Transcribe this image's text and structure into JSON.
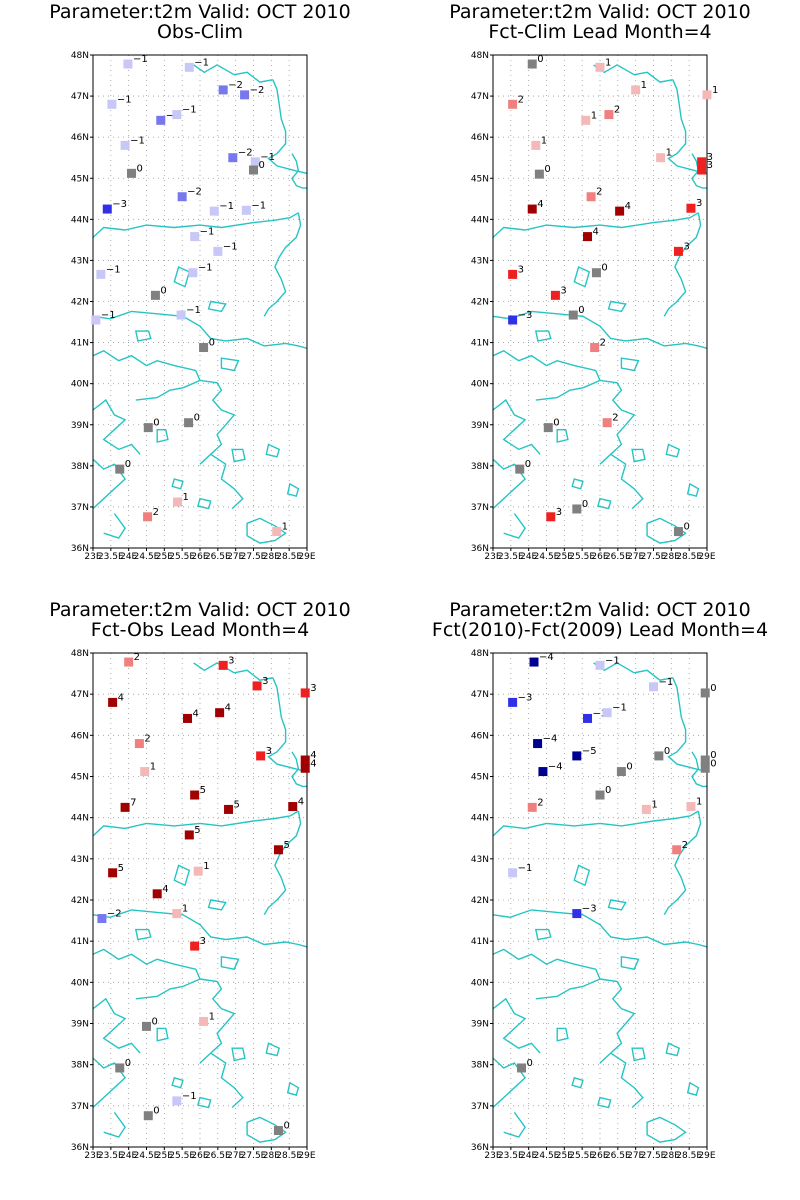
{
  "colors": {
    "coast": "#26c4c4",
    "0": "#808080",
    "1": "#f4b8b8",
    "2": "#f08080",
    "3": "#ee2020",
    "4": "#a00000",
    "5": "#a00000",
    "7": "#a00000",
    "-1": "#c8c8f8",
    "-2": "#7878ee",
    "-3": "#3030e8",
    "-4": "#000090",
    "-5": "#000090"
  },
  "chart_data": [
    {
      "type": "scatter",
      "title": "Parameter:t2m Valid: OCT 2010",
      "subtitle": "Obs-Clim",
      "xlim": [
        23,
        29
      ],
      "ylim": [
        36,
        48
      ],
      "x_ticks": [
        "23E",
        "23.5E",
        "24E",
        "24.5E",
        "25E",
        "25.5E",
        "26E",
        "26.5E",
        "27E",
        "27.5E",
        "28E",
        "28.5E",
        "29E"
      ],
      "y_ticks": [
        "36N",
        "37N",
        "38N",
        "39N",
        "40N",
        "41N",
        "42N",
        "43N",
        "44N",
        "45N",
        "46N",
        "47N",
        "48N"
      ],
      "points": [
        {
          "lon": 23.98,
          "lat": 47.78,
          "value": -1
        },
        {
          "lon": 25.7,
          "lat": 47.7,
          "value": -1
        },
        {
          "lon": 26.65,
          "lat": 47.15,
          "value": -2
        },
        {
          "lon": 27.25,
          "lat": 47.03,
          "value": -2
        },
        {
          "lon": 23.53,
          "lat": 46.8,
          "value": -1
        },
        {
          "lon": 24.9,
          "lat": 46.41,
          "value": -2
        },
        {
          "lon": 25.35,
          "lat": 46.55,
          "value": -1
        },
        {
          "lon": 23.9,
          "lat": 45.8,
          "value": -1
        },
        {
          "lon": 26.92,
          "lat": 45.5,
          "value": -2
        },
        {
          "lon": 27.55,
          "lat": 45.4,
          "value": -1
        },
        {
          "lon": 24.08,
          "lat": 45.12,
          "value": 0
        },
        {
          "lon": 27.5,
          "lat": 45.2,
          "value": 0
        },
        {
          "lon": 23.4,
          "lat": 44.25,
          "value": -3
        },
        {
          "lon": 25.5,
          "lat": 44.55,
          "value": -2
        },
        {
          "lon": 26.4,
          "lat": 44.2,
          "value": -1
        },
        {
          "lon": 27.3,
          "lat": 44.22,
          "value": -1
        },
        {
          "lon": 25.85,
          "lat": 43.58,
          "value": -1
        },
        {
          "lon": 26.5,
          "lat": 43.22,
          "value": -1
        },
        {
          "lon": 23.22,
          "lat": 42.66,
          "value": -1
        },
        {
          "lon": 25.8,
          "lat": 42.7,
          "value": -1
        },
        {
          "lon": 24.75,
          "lat": 42.15,
          "value": 0
        },
        {
          "lon": 25.47,
          "lat": 41.67,
          "value": -1
        },
        {
          "lon": 23.08,
          "lat": 41.55,
          "value": -1
        },
        {
          "lon": 26.1,
          "lat": 40.88,
          "value": 0
        },
        {
          "lon": 25.68,
          "lat": 39.05,
          "value": 0
        },
        {
          "lon": 24.55,
          "lat": 38.93,
          "value": 0
        },
        {
          "lon": 23.75,
          "lat": 37.92,
          "value": 0
        },
        {
          "lon": 25.37,
          "lat": 37.12,
          "value": 1
        },
        {
          "lon": 24.53,
          "lat": 36.76,
          "value": 2
        },
        {
          "lon": 28.15,
          "lat": 36.4,
          "value": 1
        }
      ]
    },
    {
      "type": "scatter",
      "title": "Parameter:t2m Valid: OCT 2010",
      "subtitle": "Fct-Clim Lead Month=4",
      "xlim": [
        23,
        29
      ],
      "ylim": [
        36,
        48
      ],
      "x_ticks": [
        "23E",
        "23.5E",
        "24E",
        "24.5E",
        "25E",
        "25.5E",
        "26E",
        "26.5E",
        "27E",
        "27.5E",
        "28E",
        "28.5E",
        "29E"
      ],
      "y_ticks": [
        "36N",
        "37N",
        "38N",
        "39N",
        "40N",
        "41N",
        "42N",
        "43N",
        "44N",
        "45N",
        "46N",
        "47N",
        "48N"
      ],
      "points": [
        {
          "lon": 24.1,
          "lat": 47.78,
          "value": 0
        },
        {
          "lon": 26.0,
          "lat": 47.7,
          "value": 1
        },
        {
          "lon": 27.0,
          "lat": 47.15,
          "value": 1
        },
        {
          "lon": 29.0,
          "lat": 47.03,
          "value": 1
        },
        {
          "lon": 23.55,
          "lat": 46.8,
          "value": 2
        },
        {
          "lon": 25.6,
          "lat": 46.41,
          "value": 1
        },
        {
          "lon": 26.25,
          "lat": 46.55,
          "value": 2
        },
        {
          "lon": 24.2,
          "lat": 45.8,
          "value": 1
        },
        {
          "lon": 27.7,
          "lat": 45.5,
          "value": 1
        },
        {
          "lon": 28.85,
          "lat": 45.4,
          "value": 3
        },
        {
          "lon": 24.3,
          "lat": 45.1,
          "value": 0
        },
        {
          "lon": 28.85,
          "lat": 45.2,
          "value": 3
        },
        {
          "lon": 24.1,
          "lat": 44.25,
          "value": 4
        },
        {
          "lon": 25.75,
          "lat": 44.55,
          "value": 2
        },
        {
          "lon": 26.55,
          "lat": 44.2,
          "value": 4
        },
        {
          "lon": 28.55,
          "lat": 44.27,
          "value": 3
        },
        {
          "lon": 25.65,
          "lat": 43.58,
          "value": 4
        },
        {
          "lon": 28.2,
          "lat": 43.22,
          "value": 3
        },
        {
          "lon": 23.55,
          "lat": 42.66,
          "value": 3
        },
        {
          "lon": 25.9,
          "lat": 42.7,
          "value": 0
        },
        {
          "lon": 24.75,
          "lat": 42.15,
          "value": 3
        },
        {
          "lon": 25.25,
          "lat": 41.67,
          "value": 0
        },
        {
          "lon": 23.55,
          "lat": 41.55,
          "value": -3
        },
        {
          "lon": 25.85,
          "lat": 40.88,
          "value": 2
        },
        {
          "lon": 26.2,
          "lat": 39.05,
          "value": 2
        },
        {
          "lon": 24.55,
          "lat": 38.93,
          "value": 0
        },
        {
          "lon": 23.75,
          "lat": 37.92,
          "value": 0
        },
        {
          "lon": 25.35,
          "lat": 36.95,
          "value": 0
        },
        {
          "lon": 24.62,
          "lat": 36.76,
          "value": 3
        },
        {
          "lon": 28.2,
          "lat": 36.4,
          "value": 0
        }
      ]
    },
    {
      "type": "scatter",
      "title": "Parameter:t2m Valid: OCT 2010",
      "subtitle": "Fct-Obs Lead Month=4",
      "xlim": [
        23,
        29
      ],
      "ylim": [
        36,
        48
      ],
      "x_ticks": [
        "23E",
        "23.5E",
        "24E",
        "24.5E",
        "25E",
        "25.5E",
        "26E",
        "26.5E",
        "27E",
        "27.5E",
        "28E",
        "28.5E",
        "29E"
      ],
      "y_ticks": [
        "36N",
        "37N",
        "38N",
        "39N",
        "40N",
        "41N",
        "42N",
        "43N",
        "44N",
        "45N",
        "46N",
        "47N",
        "48N"
      ],
      "points": [
        {
          "lon": 24.0,
          "lat": 47.78,
          "value": 2
        },
        {
          "lon": 26.65,
          "lat": 47.7,
          "value": 3
        },
        {
          "lon": 27.6,
          "lat": 47.2,
          "value": 3
        },
        {
          "lon": 28.95,
          "lat": 47.03,
          "value": 3
        },
        {
          "lon": 23.55,
          "lat": 46.8,
          "value": 4
        },
        {
          "lon": 25.65,
          "lat": 46.41,
          "value": 4
        },
        {
          "lon": 26.55,
          "lat": 46.55,
          "value": 4
        },
        {
          "lon": 24.3,
          "lat": 45.8,
          "value": 2
        },
        {
          "lon": 27.7,
          "lat": 45.5,
          "value": 3
        },
        {
          "lon": 28.95,
          "lat": 45.4,
          "value": 4
        },
        {
          "lon": 24.45,
          "lat": 45.12,
          "value": 1
        },
        {
          "lon": 28.95,
          "lat": 45.2,
          "value": 4
        },
        {
          "lon": 23.9,
          "lat": 44.25,
          "value": 7
        },
        {
          "lon": 25.85,
          "lat": 44.55,
          "value": 5
        },
        {
          "lon": 26.8,
          "lat": 44.2,
          "value": 5
        },
        {
          "lon": 28.6,
          "lat": 44.27,
          "value": 4
        },
        {
          "lon": 25.7,
          "lat": 43.58,
          "value": 5
        },
        {
          "lon": 28.2,
          "lat": 43.22,
          "value": 5
        },
        {
          "lon": 23.55,
          "lat": 42.66,
          "value": 5
        },
        {
          "lon": 25.95,
          "lat": 42.7,
          "value": 1
        },
        {
          "lon": 24.8,
          "lat": 42.15,
          "value": 4
        },
        {
          "lon": 25.35,
          "lat": 41.67,
          "value": 1
        },
        {
          "lon": 23.25,
          "lat": 41.55,
          "value": -2
        },
        {
          "lon": 25.85,
          "lat": 40.88,
          "value": 3
        },
        {
          "lon": 26.1,
          "lat": 39.05,
          "value": 1
        },
        {
          "lon": 24.5,
          "lat": 38.93,
          "value": 0
        },
        {
          "lon": 23.75,
          "lat": 37.92,
          "value": 0
        },
        {
          "lon": 25.35,
          "lat": 37.12,
          "value": -1
        },
        {
          "lon": 24.55,
          "lat": 36.76,
          "value": 0
        },
        {
          "lon": 28.2,
          "lat": 36.4,
          "value": 0
        }
      ]
    },
    {
      "type": "scatter",
      "title": "Parameter:t2m Valid: OCT 2010",
      "subtitle": "Fct(2010)-Fct(2009) Lead Month=4",
      "xlim": [
        23,
        29
      ],
      "ylim": [
        36,
        48
      ],
      "x_ticks": [
        "23E",
        "23.5E",
        "24E",
        "24.5E",
        "25E",
        "25.5E",
        "26E",
        "26.5E",
        "27E",
        "27.5E",
        "28E",
        "28.5E",
        "29E"
      ],
      "y_ticks": [
        "36N",
        "37N",
        "38N",
        "39N",
        "40N",
        "41N",
        "42N",
        "43N",
        "44N",
        "45N",
        "46N",
        "47N",
        "48N"
      ],
      "points": [
        {
          "lon": 24.15,
          "lat": 47.78,
          "value": -4
        },
        {
          "lon": 26.0,
          "lat": 47.7,
          "value": -1
        },
        {
          "lon": 27.5,
          "lat": 47.18,
          "value": -1
        },
        {
          "lon": 28.95,
          "lat": 47.03,
          "value": 0
        },
        {
          "lon": 23.55,
          "lat": 46.8,
          "value": -3
        },
        {
          "lon": 25.65,
          "lat": 46.41,
          "value": -3
        },
        {
          "lon": 26.2,
          "lat": 46.55,
          "value": -1
        },
        {
          "lon": 24.25,
          "lat": 45.8,
          "value": -4
        },
        {
          "lon": 27.65,
          "lat": 45.5,
          "value": 0
        },
        {
          "lon": 28.95,
          "lat": 45.4,
          "value": 0
        },
        {
          "lon": 24.4,
          "lat": 45.12,
          "value": -4
        },
        {
          "lon": 28.95,
          "lat": 45.2,
          "value": 0
        },
        {
          "lon": 24.1,
          "lat": 44.25,
          "value": 2
        },
        {
          "lon": 26.0,
          "lat": 44.55,
          "value": 0
        },
        {
          "lon": 27.3,
          "lat": 44.2,
          "value": 1
        },
        {
          "lon": 28.55,
          "lat": 44.27,
          "value": 1
        },
        {
          "lon": 28.15,
          "lat": 43.22,
          "value": 2
        },
        {
          "lon": 23.55,
          "lat": 42.66,
          "value": -1
        },
        {
          "lon": 25.35,
          "lat": 41.67,
          "value": -3
        },
        {
          "lon": 25.35,
          "lat": 45.5,
          "value": -5
        },
        {
          "lon": 26.6,
          "lat": 45.12,
          "value": 0
        },
        {
          "lon": 23.8,
          "lat": 37.92,
          "value": 0
        }
      ]
    }
  ]
}
